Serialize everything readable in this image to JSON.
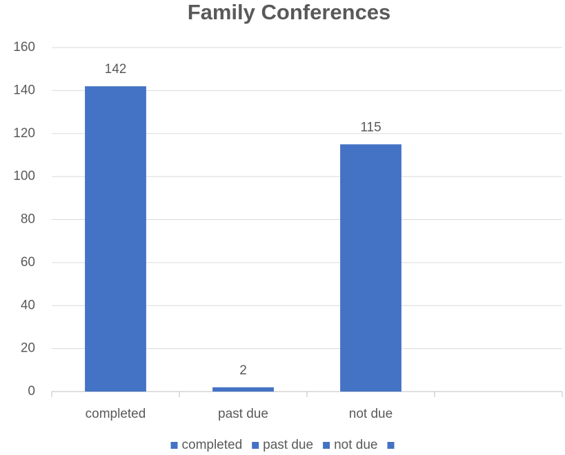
{
  "chart_data": {
    "type": "bar",
    "title": "Family Conferences",
    "categories": [
      "completed",
      "past due",
      "not due",
      null
    ],
    "values": [
      142,
      2,
      115,
      null
    ],
    "color": "#4472c4",
    "ylim": [
      0,
      160
    ],
    "yticks": [
      0,
      20,
      40,
      60,
      80,
      100,
      120,
      140,
      160
    ],
    "grid": true,
    "legend": "bottom"
  }
}
